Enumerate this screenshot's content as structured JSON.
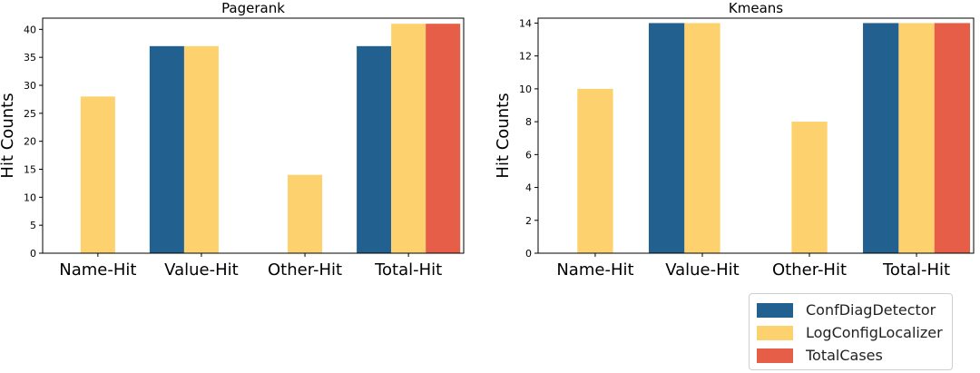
{
  "colors": {
    "ConfDiagDetector": "#22608f",
    "LogConfigLocalizer": "#fdd26e",
    "TotalCases": "#e65d48"
  },
  "legend": {
    "items": [
      {
        "label": "ConfDiagDetector",
        "color": "#22608f"
      },
      {
        "label": "LogConfigLocalizer",
        "color": "#fdd26e"
      },
      {
        "label": "TotalCases",
        "color": "#e65d48"
      }
    ]
  },
  "chart_data": [
    {
      "type": "bar",
      "title": "Pagerank",
      "xlabel": "",
      "ylabel": "Hit Counts",
      "categories": [
        "Name-Hit",
        "Value-Hit",
        "Other-Hit",
        "Total-Hit"
      ],
      "ylim": [
        0,
        42
      ],
      "yticks": [
        0,
        5,
        10,
        15,
        20,
        25,
        30,
        35,
        40
      ],
      "grid": false,
      "series": [
        {
          "name": "ConfDiagDetector",
          "values": [
            0,
            37,
            0,
            37
          ]
        },
        {
          "name": "LogConfigLocalizer",
          "values": [
            28,
            37,
            14,
            41
          ]
        },
        {
          "name": "TotalCases",
          "values": [
            null,
            null,
            null,
            41
          ]
        }
      ]
    },
    {
      "type": "bar",
      "title": "Kmeans",
      "xlabel": "",
      "ylabel": "Hit Counts",
      "categories": [
        "Name-Hit",
        "Value-Hit",
        "Other-Hit",
        "Total-Hit"
      ],
      "ylim": [
        0,
        14.3
      ],
      "yticks": [
        0,
        2,
        4,
        6,
        8,
        10,
        12,
        14
      ],
      "grid": false,
      "series": [
        {
          "name": "ConfDiagDetector",
          "values": [
            0,
            14,
            0,
            14
          ]
        },
        {
          "name": "LogConfigLocalizer",
          "values": [
            10,
            14,
            8,
            14
          ]
        },
        {
          "name": "TotalCases",
          "values": [
            null,
            null,
            null,
            14
          ]
        }
      ]
    }
  ]
}
